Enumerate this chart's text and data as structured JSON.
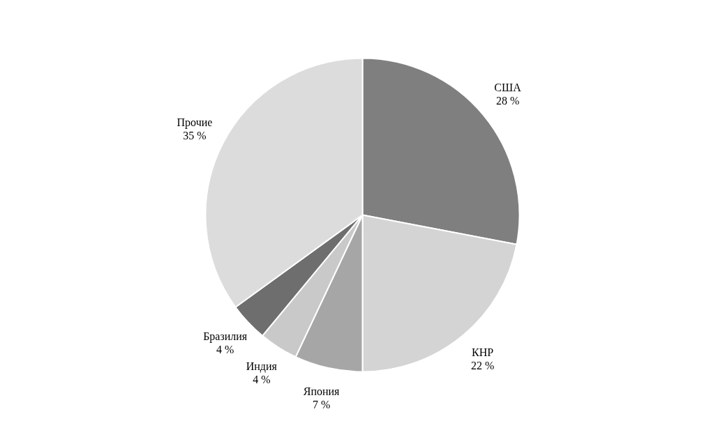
{
  "chart_data": {
    "type": "pie",
    "categories": [
      "США",
      "КНР",
      "Япония",
      "Индия",
      "Бразилия",
      "Прочие"
    ],
    "values": [
      28,
      22,
      7,
      4,
      4,
      35
    ],
    "colors": [
      "#7f7f7f",
      "#d4d4d4",
      "#a6a6a6",
      "#c9c9c9",
      "#6e6e6e",
      "#dcdcdc"
    ],
    "value_labels": [
      "28 %",
      "22 %",
      "7 %",
      "4 %",
      "4 %",
      "35 %"
    ],
    "legend": false
  }
}
